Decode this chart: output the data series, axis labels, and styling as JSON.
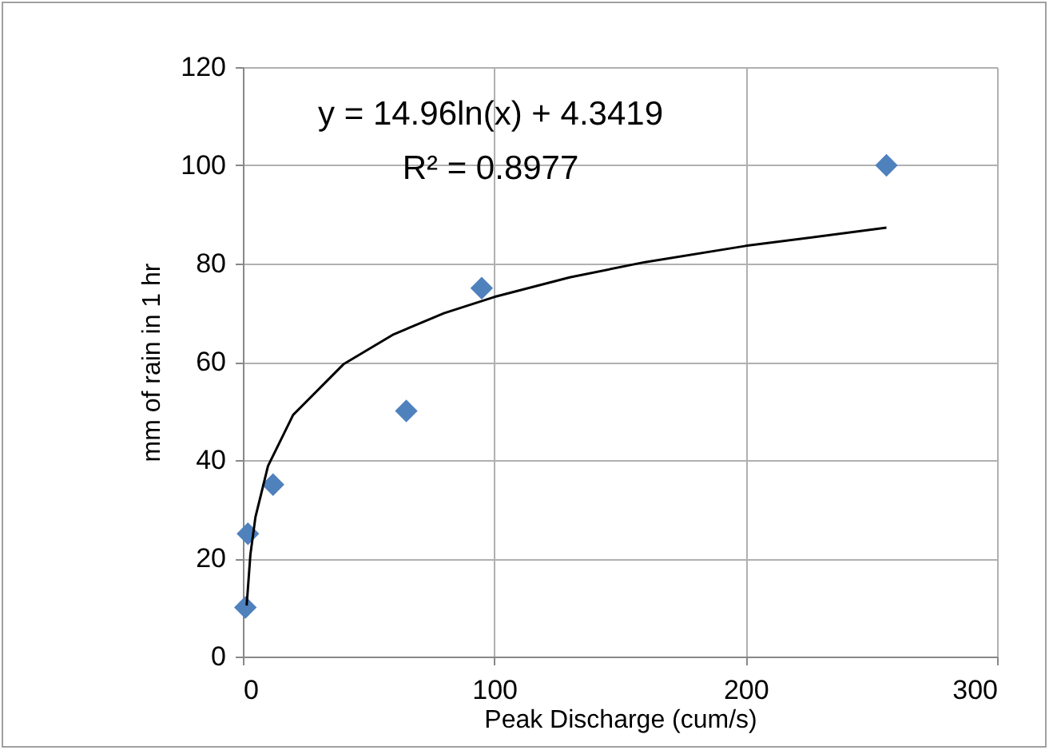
{
  "chart_data": {
    "type": "scatter",
    "xlabel": "Peak Discharge (cum/s)",
    "ylabel": "mm of rain in 1 hr",
    "annotations": [
      "y = 14.96ln(x) + 4.3419",
      "R² = 0.8977"
    ],
    "series": [
      {
        "marker": "diamond",
        "color": "#4f81bd",
        "x": [
          1,
          2,
          12,
          65,
          95,
          256
        ],
        "values": [
          10,
          25,
          35,
          50,
          75,
          100
        ]
      },
      {
        "type": "line",
        "color": "#000000",
        "x": [
          1.5,
          3,
          5,
          10,
          20,
          40,
          60,
          80,
          100,
          130,
          160,
          200,
          256
        ],
        "values": [
          10.4,
          20.8,
          28.4,
          38.8,
          49.2,
          59.5,
          65.6,
          69.9,
          73.2,
          77.2,
          80.3,
          83.6,
          87.3
        ]
      }
    ],
    "xlim": [
      0,
      300
    ],
    "xticks": [
      0,
      100,
      200,
      300
    ],
    "ylim": [
      0,
      120
    ],
    "yticks": [
      0,
      20,
      40,
      60,
      80,
      100,
      120
    ],
    "grid": true
  }
}
